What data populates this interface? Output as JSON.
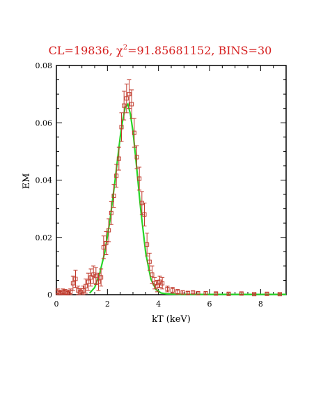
{
  "chart_data": {
    "type": "scatter",
    "title_prefix": "CL=19836, ",
    "title_chi_symbol": "χ",
    "title_chi_exp": "2",
    "title_suffix": "=91.85681152, BINS=30",
    "xlabel": "kT (keV)",
    "ylabel": "EM",
    "xlim": [
      0,
      9
    ],
    "ylim": [
      0,
      0.08
    ],
    "x_ticks": [
      0,
      2,
      4,
      6,
      8
    ],
    "x_tick_labels": [
      "0",
      "2",
      "4",
      "6",
      "8"
    ],
    "y_ticks": [
      0,
      0.02,
      0.04,
      0.06,
      0.08
    ],
    "y_tick_labels": [
      "0",
      "0.02",
      "0.04",
      "0.06",
      "0.08"
    ],
    "grid": false,
    "colors": {
      "points": "#c0392b",
      "fit": "#27d627",
      "title": "#d62020",
      "axes": "#000000"
    },
    "series": [
      {
        "kind": "points",
        "x": [
          0.05,
          0.15,
          0.25,
          0.35,
          0.45,
          0.55,
          0.65,
          0.75,
          0.85,
          0.95,
          1.05,
          1.15,
          1.25,
          1.35,
          1.45,
          1.55,
          1.65,
          1.75,
          1.85,
          1.95,
          2.05,
          2.15,
          2.25,
          2.35,
          2.45,
          2.55,
          2.65,
          2.75,
          2.85,
          2.95,
          3.05,
          3.15,
          3.25,
          3.35,
          3.45,
          3.55,
          3.65,
          3.75,
          3.85,
          3.95,
          4.05,
          4.15,
          4.35,
          4.55,
          4.75,
          4.95,
          5.15,
          5.35,
          5.55,
          5.85,
          6.25,
          6.75,
          7.25,
          7.75,
          8.25,
          8.75
        ],
        "y": [
          0.001,
          0.0005,
          0.001,
          0.0008,
          0.0005,
          0.001,
          0.004,
          0.0055,
          0.0015,
          0.001,
          0.0015,
          0.003,
          0.0045,
          0.006,
          0.007,
          0.0065,
          0.0045,
          0.006,
          0.0165,
          0.018,
          0.0225,
          0.0285,
          0.0345,
          0.0415,
          0.0475,
          0.0585,
          0.066,
          0.0685,
          0.07,
          0.0665,
          0.0565,
          0.048,
          0.0405,
          0.032,
          0.028,
          0.0175,
          0.0115,
          0.007,
          0.004,
          0.003,
          0.0045,
          0.004,
          0.002,
          0.0015,
          0.001,
          0.0008,
          0.0006,
          0.0008,
          0.0005,
          0.0005,
          0.0004,
          0.0003,
          0.0004,
          0.0002,
          0.0003,
          0.0002
        ],
        "yerr": [
          0.001,
          0.001,
          0.001,
          0.001,
          0.001,
          0.001,
          0.0025,
          0.003,
          0.0015,
          0.0012,
          0.0015,
          0.0025,
          0.003,
          0.003,
          0.003,
          0.003,
          0.003,
          0.003,
          0.004,
          0.004,
          0.004,
          0.004,
          0.004,
          0.004,
          0.004,
          0.005,
          0.005,
          0.005,
          0.005,
          0.005,
          0.005,
          0.004,
          0.004,
          0.004,
          0.004,
          0.004,
          0.003,
          0.003,
          0.002,
          0.002,
          0.002,
          0.002,
          0.001,
          0.001,
          0.0008,
          0.0006,
          0.0005,
          0.0005,
          0.0005,
          0.0005,
          0.0004,
          0.0003,
          0.0003,
          0.0002,
          0.0003,
          0.0002
        ]
      },
      {
        "kind": "fit",
        "x": [
          1.3,
          1.5,
          1.7,
          1.9,
          2.1,
          2.3,
          2.5,
          2.6,
          2.7,
          2.8,
          2.9,
          3.0,
          3.1,
          3.3,
          3.5,
          3.7,
          3.9,
          4.1,
          4.3,
          4.6,
          5.0,
          6.0,
          7.0,
          8.0,
          9.0
        ],
        "y": [
          0.0005,
          0.0025,
          0.0075,
          0.015,
          0.026,
          0.04,
          0.055,
          0.061,
          0.0655,
          0.0665,
          0.063,
          0.057,
          0.0485,
          0.03,
          0.0145,
          0.0055,
          0.0018,
          0.0006,
          0.0003,
          0.0002,
          0.0001,
          0.0001,
          0.0001,
          0.0001,
          0.0001
        ]
      }
    ]
  }
}
